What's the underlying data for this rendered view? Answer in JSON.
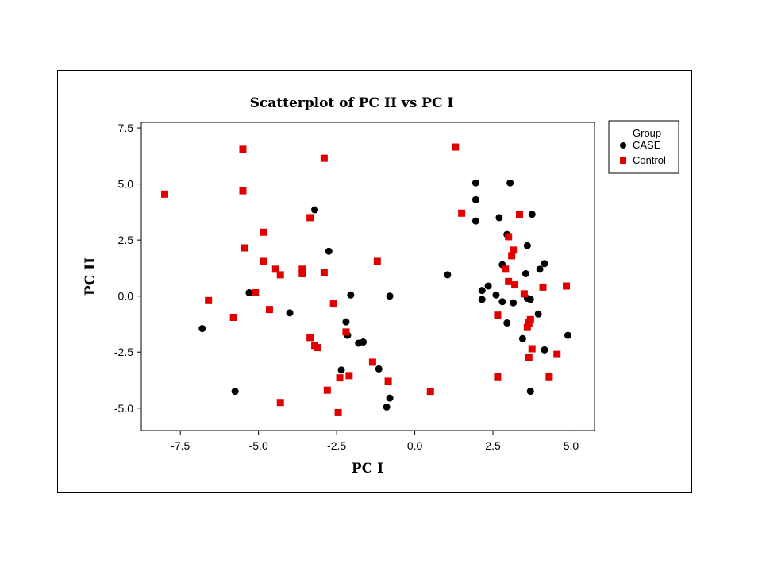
{
  "chart_data": {
    "type": "scatter",
    "title": "Scatterplot of PC II vs PC I",
    "xlabel": "PC I",
    "ylabel": "PC II",
    "xlim": [
      -8.75,
      5.75
    ],
    "ylim": [
      -6.0,
      7.75
    ],
    "xticks": [
      -7.5,
      -5.0,
      -2.5,
      0.0,
      2.5,
      5.0
    ],
    "xtick_labels": [
      "-7.5",
      "-5.0",
      "-2.5",
      "0.0",
      "2.5",
      "5.0"
    ],
    "yticks": [
      -5.0,
      -2.5,
      0.0,
      2.5,
      5.0,
      7.5
    ],
    "ytick_labels": [
      "-5.0",
      "-2.5",
      "0.0",
      "2.5",
      "5.0",
      "7.5"
    ],
    "grid": false,
    "legend": {
      "title": "Group",
      "position": "right"
    },
    "series": [
      {
        "name": "CASE",
        "marker": "circle",
        "color": "#000000",
        "points": [
          [
            -6.8,
            -1.45
          ],
          [
            -5.75,
            -4.25
          ],
          [
            -5.3,
            0.15
          ],
          [
            -4.0,
            -0.75
          ],
          [
            -3.2,
            3.85
          ],
          [
            -2.75,
            2.0
          ],
          [
            -2.2,
            -1.15
          ],
          [
            -2.15,
            -1.75
          ],
          [
            -2.05,
            0.05
          ],
          [
            -1.8,
            -2.1
          ],
          [
            -1.65,
            -2.05
          ],
          [
            -2.35,
            -3.3
          ],
          [
            -1.15,
            -3.25
          ],
          [
            -0.8,
            -4.55
          ],
          [
            -0.9,
            -4.95
          ],
          [
            -0.8,
            0.0
          ],
          [
            1.05,
            0.95
          ],
          [
            1.95,
            5.05
          ],
          [
            1.95,
            4.3
          ],
          [
            1.95,
            3.35
          ],
          [
            2.15,
            -0.15
          ],
          [
            2.15,
            0.25
          ],
          [
            2.35,
            0.45
          ],
          [
            2.6,
            0.05
          ],
          [
            2.7,
            3.5
          ],
          [
            2.8,
            1.4
          ],
          [
            2.8,
            -0.25
          ],
          [
            2.95,
            2.75
          ],
          [
            2.95,
            -1.2
          ],
          [
            3.05,
            5.05
          ],
          [
            3.15,
            -0.3
          ],
          [
            3.45,
            -1.9
          ],
          [
            3.55,
            1.0
          ],
          [
            3.6,
            2.25
          ],
          [
            3.6,
            -0.1
          ],
          [
            3.7,
            -0.15
          ],
          [
            3.7,
            -4.25
          ],
          [
            3.75,
            3.65
          ],
          [
            3.95,
            -0.8
          ],
          [
            4.0,
            1.2
          ],
          [
            4.15,
            1.45
          ],
          [
            4.15,
            -2.4
          ],
          [
            4.9,
            -1.75
          ]
        ]
      },
      {
        "name": "Control",
        "marker": "square",
        "color": "#e00000",
        "points": [
          [
            -8.0,
            4.55
          ],
          [
            -6.6,
            -0.2
          ],
          [
            -5.8,
            -0.95
          ],
          [
            -5.5,
            6.55
          ],
          [
            -5.5,
            4.7
          ],
          [
            -5.45,
            2.15
          ],
          [
            -5.1,
            0.15
          ],
          [
            -4.85,
            2.85
          ],
          [
            -4.85,
            1.55
          ],
          [
            -4.65,
            -0.6
          ],
          [
            -4.45,
            1.2
          ],
          [
            -4.3,
            0.95
          ],
          [
            -4.3,
            -4.75
          ],
          [
            -3.35,
            3.5
          ],
          [
            -3.35,
            -1.85
          ],
          [
            -3.2,
            -2.2
          ],
          [
            -3.1,
            -2.3
          ],
          [
            -3.6,
            1.2
          ],
          [
            -3.6,
            1.0
          ],
          [
            -2.9,
            6.15
          ],
          [
            -2.9,
            1.05
          ],
          [
            -2.8,
            -4.2
          ],
          [
            -2.6,
            -0.35
          ],
          [
            -2.4,
            -3.65
          ],
          [
            -2.45,
            -5.2
          ],
          [
            -2.2,
            -1.6
          ],
          [
            -2.1,
            -3.55
          ],
          [
            -1.35,
            -2.95
          ],
          [
            -1.2,
            1.55
          ],
          [
            -0.85,
            -3.8
          ],
          [
            0.5,
            -4.25
          ],
          [
            1.3,
            6.65
          ],
          [
            1.5,
            3.7
          ],
          [
            2.65,
            -0.85
          ],
          [
            2.65,
            -3.6
          ],
          [
            2.9,
            1.2
          ],
          [
            3.0,
            2.65
          ],
          [
            3.0,
            0.65
          ],
          [
            3.1,
            1.8
          ],
          [
            3.15,
            2.05
          ],
          [
            3.2,
            0.5
          ],
          [
            3.35,
            3.65
          ],
          [
            3.5,
            0.1
          ],
          [
            3.6,
            -1.4
          ],
          [
            3.65,
            -1.2
          ],
          [
            3.7,
            -1.05
          ],
          [
            3.65,
            -2.75
          ],
          [
            3.75,
            -2.35
          ],
          [
            4.1,
            0.4
          ],
          [
            4.3,
            -3.6
          ],
          [
            4.55,
            -2.6
          ],
          [
            4.85,
            0.45
          ]
        ]
      }
    ]
  }
}
